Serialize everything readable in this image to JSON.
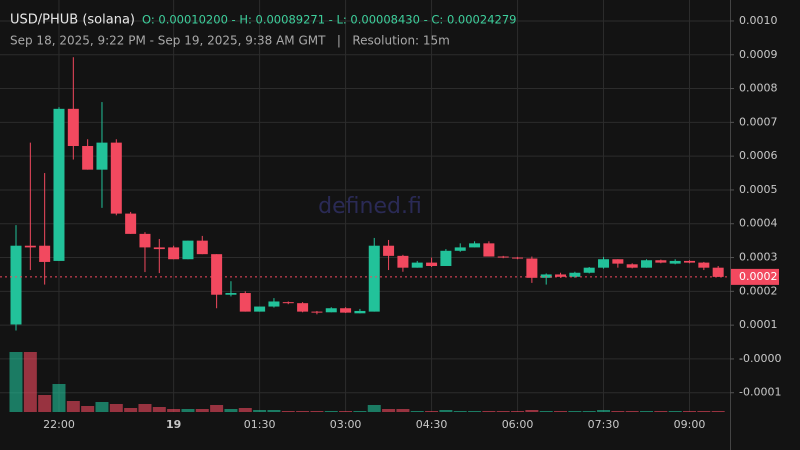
{
  "chart_data": {
    "type": "candlestick",
    "title": "USD/PHUB (solana)",
    "ohlc_summary": "O: 0.00010200 - H: 0.00089271 - L: 0.00008430 - C: 0.00024279",
    "subtitle": "Sep 18, 2025, 9:22 PM - Sep 19, 2025, 9:38 AM GMT   |   Resolution: 15m",
    "watermark": "defined.fi",
    "up_color": "#22c29a",
    "down_color": "#f2495f",
    "grid": true,
    "x": [
      "21:15",
      "21:30",
      "21:45",
      "22:00",
      "22:15",
      "22:30",
      "22:45",
      "23:00",
      "23:15",
      "23:30",
      "23:45",
      "00:00",
      "00:15",
      "00:30",
      "00:45",
      "01:00",
      "01:15",
      "01:30",
      "01:45",
      "02:00",
      "02:15",
      "02:30",
      "02:45",
      "03:00",
      "03:15",
      "03:30",
      "03:45",
      "04:00",
      "04:15",
      "04:30",
      "04:45",
      "05:00",
      "05:15",
      "05:30",
      "05:45",
      "06:00",
      "06:15",
      "06:30",
      "06:45",
      "07:00",
      "07:15",
      "07:30",
      "07:45",
      "08:00",
      "08:15",
      "08:30",
      "08:45",
      "09:00",
      "09:15",
      "09:30"
    ],
    "xticks": [
      "22:00",
      {
        "value": "00:00",
        "label": "19"
      },
      "01:30",
      "03:00",
      "04:30",
      "06:00",
      "07:30",
      "09:00"
    ],
    "ylim": [
      -0.000157,
      0.001062
    ],
    "yticks": [
      {
        "value": 0.001,
        "label": "0.0010"
      },
      {
        "value": 0.0009,
        "label": "0.0009"
      },
      {
        "value": 0.0008,
        "label": "0.0008"
      },
      {
        "value": 0.0007,
        "label": "0.0007"
      },
      {
        "value": 0.0006,
        "label": "0.0006"
      },
      {
        "value": 0.0005,
        "label": "0.0005"
      },
      {
        "value": 0.0004,
        "label": "0.0004"
      },
      {
        "value": 0.0003,
        "label": "0.0003"
      },
      {
        "value": 0.0002,
        "label": "0.0002"
      },
      {
        "value": 0.0001,
        "label": "0.0001"
      },
      {
        "value": 0,
        "label": "-0.0000"
      },
      {
        "value": -0.0001,
        "label": "-0.0001"
      }
    ],
    "last_price": {
      "value": 0.00024279,
      "label": "0.0002"
    },
    "open": [
      0.000102,
      0.000335,
      0.000335,
      0.00029,
      0.00074,
      0.00063,
      0.00056,
      0.00064,
      0.00043,
      0.00037,
      0.00033,
      0.00033,
      0.000295,
      0.00035,
      0.00031,
      0.00019,
      0.000195,
      0.00014,
      0.000155,
      0.000168,
      0.000165,
      0.00014,
      0.000138,
      0.00015,
      0.000135,
      0.00014,
      0.000335,
      0.000305,
      0.00027,
      0.000285,
      0.000275,
      0.00032,
      0.00033,
      0.000342,
      0.000303,
      0.0003,
      0.000297,
      0.00024,
      0.00025,
      0.000243,
      0.000255,
      0.00027,
      0.000295,
      0.00028,
      0.00027,
      0.000292,
      0.000282,
      0.00029,
      0.000285,
      0.00027
    ],
    "high": [
      0.000396,
      0.00064,
      0.00055,
      0.000745,
      0.00089271,
      0.00065,
      0.00076,
      0.00065,
      0.000435,
      0.000375,
      0.000355,
      0.000335,
      0.00035,
      0.000364,
      0.00031,
      0.00023,
      0.0002,
      0.000155,
      0.00018,
      0.00017,
      0.000168,
      0.000142,
      0.000153,
      0.000153,
      0.000148,
      0.000358,
      0.000352,
      0.000308,
      0.00029,
      0.0003,
      0.000325,
      0.000342,
      0.000348,
      0.000348,
      0.000305,
      0.000302,
      0.000303,
      0.000253,
      0.000255,
      0.000258,
      0.000272,
      0.000302,
      0.000295,
      0.000283,
      0.000295,
      0.000294,
      0.000295,
      0.000292,
      0.000287,
      0.000275
    ],
    "low": [
      8.43e-05,
      0.000263,
      0.00022,
      0.00029,
      0.00059,
      0.00056,
      0.000447,
      0.000425,
      0.00037,
      0.000257,
      0.000254,
      0.000295,
      0.000295,
      0.00031,
      0.00015,
      0.000185,
      0.00014,
      0.00014,
      0.000152,
      0.000162,
      0.000138,
      0.000132,
      0.000138,
      0.000136,
      0.000135,
      0.00014,
      0.000263,
      0.000258,
      0.00027,
      0.000272,
      0.000275,
      0.000317,
      0.00033,
      0.000303,
      0.000298,
      0.000295,
      0.000225,
      0.00022,
      0.00024,
      0.00024,
      0.000253,
      0.000267,
      0.00027,
      0.000268,
      0.00027,
      0.000283,
      0.00028,
      0.000283,
      0.000263,
      0.000243
    ],
    "close": [
      0.000335,
      0.00033,
      0.000287,
      0.00074,
      0.00063,
      0.00056,
      0.00064,
      0.00043,
      0.00037,
      0.00033,
      0.000325,
      0.000295,
      0.00035,
      0.00031,
      0.00019,
      0.000195,
      0.00014,
      0.000155,
      0.00017,
      0.000165,
      0.00014,
      0.000138,
      0.00015,
      0.000137,
      0.000142,
      0.000335,
      0.000305,
      0.00027,
      0.000285,
      0.000275,
      0.00032,
      0.00033,
      0.000342,
      0.000303,
      0.0003,
      0.000297,
      0.00024,
      0.00025,
      0.000243,
      0.000255,
      0.00027,
      0.000295,
      0.000282,
      0.00027,
      0.000292,
      0.000285,
      0.00029,
      0.000285,
      0.00027,
      0.00024279
    ],
    "volume": [
      60,
      60,
      17,
      28,
      11,
      6,
      10,
      8,
      4,
      8,
      5,
      3,
      3,
      3,
      7,
      3,
      4,
      2,
      2,
      1,
      1,
      1,
      1,
      1,
      1,
      7,
      3,
      3,
      1,
      1,
      2,
      1,
      1,
      1,
      1,
      1,
      2,
      1,
      1,
      1,
      1,
      2,
      1,
      1,
      1,
      1,
      1,
      1,
      1,
      1
    ]
  }
}
